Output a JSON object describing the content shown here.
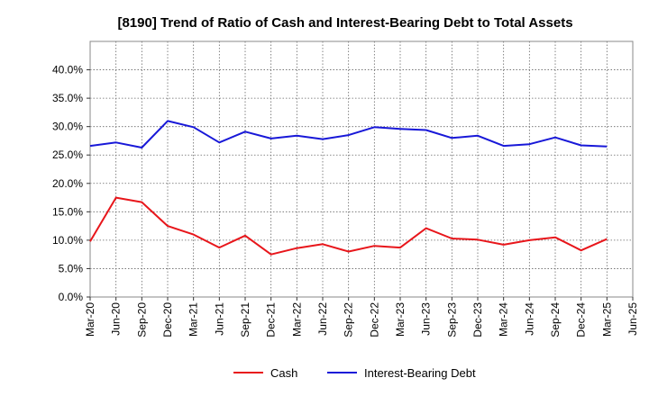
{
  "chart_data": {
    "type": "line",
    "title": "[8190]  Trend of Ratio of Cash and Interest-Bearing Debt to Total Assets",
    "xlabel": "",
    "ylabel": "",
    "categories": [
      "Mar-20",
      "Jun-20",
      "Sep-20",
      "Dec-20",
      "Mar-21",
      "Jun-21",
      "Sep-21",
      "Dec-21",
      "Mar-22",
      "Jun-22",
      "Sep-22",
      "Dec-22",
      "Mar-23",
      "Jun-23",
      "Sep-23",
      "Dec-23",
      "Mar-24",
      "Jun-24",
      "Sep-24",
      "Dec-24",
      "Mar-25",
      "Jun-25"
    ],
    "ylim": [
      0,
      45
    ],
    "yticks": [
      "0.0%",
      "5.0%",
      "10.0%",
      "15.0%",
      "20.0%",
      "25.0%",
      "30.0%",
      "35.0%",
      "40.0%"
    ],
    "ytick_values": [
      0,
      5,
      10,
      15,
      20,
      25,
      30,
      35,
      40
    ],
    "grid": true,
    "legend": "bottom",
    "series": [
      {
        "name": "Cash",
        "color": "#e8161b",
        "values": [
          9.8,
          17.5,
          16.7,
          12.5,
          11.0,
          8.7,
          10.8,
          7.5,
          8.6,
          9.3,
          8.0,
          9.0,
          8.7,
          12.1,
          10.3,
          10.1,
          9.2,
          10.0,
          10.5,
          8.2,
          10.2,
          null
        ]
      },
      {
        "name": "Interest-Bearing Debt",
        "color": "#1818d8",
        "values": [
          26.6,
          27.2,
          26.3,
          31.0,
          29.9,
          27.2,
          29.1,
          27.9,
          28.4,
          27.8,
          28.5,
          29.9,
          29.6,
          29.4,
          28.0,
          28.4,
          26.6,
          26.9,
          28.1,
          26.7,
          26.5,
          null
        ]
      }
    ]
  }
}
